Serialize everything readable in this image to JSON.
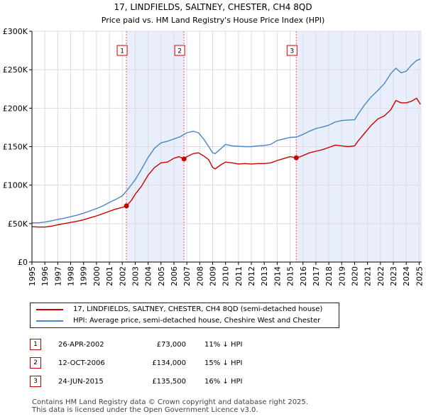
{
  "chart_data": {
    "type": "line",
    "title": "17, LINDFIELDS, SALTNEY, CHESTER, CH4 8QD",
    "subtitle": "Price paid vs. HM Land Registry's House Price Index (HPI)",
    "xlabel": "",
    "ylabel": "",
    "xlim": [
      1995,
      2025.2
    ],
    "ylim": [
      0,
      300000
    ],
    "y_ticks": [
      0,
      50000,
      100000,
      150000,
      200000,
      250000,
      300000
    ],
    "y_tick_labels": [
      "£0",
      "£50K",
      "£100K",
      "£150K",
      "£200K",
      "£250K",
      "£300K"
    ],
    "x_ticks": [
      1995,
      1996,
      1997,
      1998,
      1999,
      2000,
      2001,
      2002,
      2003,
      2004,
      2005,
      2006,
      2007,
      2008,
      2009,
      2010,
      2011,
      2012,
      2013,
      2014,
      2015,
      2016,
      2017,
      2018,
      2019,
      2020,
      2021,
      2022,
      2023,
      2024,
      2025
    ],
    "grid": true,
    "series": [
      {
        "name": "17, LINDFIELDS, SALTNEY, CHESTER, CH4 8QD (semi-detached house)",
        "color": "#cc0000",
        "x": [
          1995,
          1995.5,
          1996,
          1996.5,
          1997,
          1997.5,
          1998,
          1998.5,
          1999,
          1999.5,
          2000,
          2000.5,
          2001,
          2001.5,
          2002,
          2002.32,
          2002.7,
          2003,
          2003.5,
          2004,
          2004.5,
          2005,
          2005.5,
          2006,
          2006.4,
          2006.78,
          2007,
          2007.5,
          2007.9,
          2008.3,
          2008.7,
          2009,
          2009.2,
          2009.6,
          2010,
          2010.5,
          2011,
          2011.5,
          2012,
          2012.5,
          2013,
          2013.5,
          2014,
          2014.5,
          2015,
          2015.48,
          2015.8,
          2016.5,
          2017,
          2017.5,
          2018,
          2018.5,
          2019,
          2019.5,
          2020,
          2020.3,
          2020.8,
          2021.3,
          2021.8,
          2022.3,
          2022.8,
          2023.2,
          2023.6,
          2024,
          2024.4,
          2024.8,
          2025.1
        ],
        "values": [
          46000,
          45500,
          45500,
          46500,
          48500,
          50000,
          51500,
          53000,
          55000,
          57500,
          60000,
          63000,
          66000,
          69000,
          71000,
          73000,
          80000,
          88000,
          99000,
          113000,
          123000,
          129000,
          130000,
          135000,
          137000,
          134000,
          137000,
          141000,
          142000,
          138000,
          133000,
          123000,
          121000,
          126000,
          130000,
          129000,
          127500,
          128000,
          127500,
          128000,
          128000,
          129000,
          132000,
          134500,
          137000,
          135500,
          137000,
          142000,
          144000,
          146000,
          149000,
          152000,
          151000,
          150000,
          151000,
          158000,
          168000,
          178000,
          186000,
          190000,
          198000,
          210000,
          207000,
          207000,
          209000,
          213000,
          205000
        ]
      },
      {
        "name": "HPI: Average price, semi-detached house, Cheshire West and Chester",
        "color": "#4a86c8",
        "x": [
          1995,
          1995.5,
          1996,
          1996.5,
          1997,
          1997.5,
          1998,
          1998.5,
          1999,
          1999.5,
          2000,
          2000.5,
          2001,
          2001.5,
          2002,
          2002.5,
          2003,
          2003.5,
          2004,
          2004.5,
          2005,
          2005.5,
          2006,
          2006.5,
          2007,
          2007.5,
          2007.9,
          2008.3,
          2008.7,
          2009,
          2009.2,
          2009.6,
          2010,
          2010.5,
          2011,
          2011.5,
          2012,
          2012.5,
          2013,
          2013.5,
          2014,
          2014.5,
          2015,
          2015.5,
          2016,
          2016.5,
          2017,
          2017.5,
          2018,
          2018.5,
          2019,
          2019.5,
          2020,
          2020.3,
          2020.8,
          2021.3,
          2021.8,
          2022.3,
          2022.8,
          2023.2,
          2023.6,
          2024,
          2024.4,
          2024.8,
          2025.1
        ],
        "values": [
          51000,
          51000,
          52000,
          53500,
          55500,
          57000,
          59000,
          61000,
          63500,
          66500,
          69500,
          73000,
          77500,
          81500,
          86000,
          96000,
          107000,
          121000,
          136000,
          148000,
          155000,
          157000,
          160000,
          163000,
          168000,
          170000,
          168000,
          160000,
          150000,
          142000,
          141000,
          147000,
          153000,
          151000,
          150500,
          150000,
          150000,
          151000,
          151500,
          153000,
          158000,
          160000,
          162000,
          162500,
          166000,
          170000,
          173500,
          175500,
          178000,
          182000,
          184000,
          184500,
          185000,
          193000,
          205000,
          215000,
          223000,
          232000,
          245000,
          252000,
          246000,
          248000,
          256000,
          262000,
          264000
        ]
      }
    ],
    "sales": [
      {
        "label": "1",
        "x": 2002.32,
        "value": 73000
      },
      {
        "label": "2",
        "x": 2006.78,
        "value": 134000
      },
      {
        "label": "3",
        "x": 2015.48,
        "value": 135500
      }
    ]
  },
  "legend": {
    "property": "17, LINDFIELDS, SALTNEY, CHESTER, CH4 8QD (semi-detached house)",
    "hpi": "HPI: Average price, semi-detached house, Cheshire West and Chester"
  },
  "transactions": [
    {
      "num": "1",
      "date": "26-APR-2002",
      "price": "£73,000",
      "diff": "11% ↓ HPI"
    },
    {
      "num": "2",
      "date": "12-OCT-2006",
      "price": "£134,000",
      "diff": "15% ↓ HPI"
    },
    {
      "num": "3",
      "date": "24-JUN-2015",
      "price": "£135,500",
      "diff": "16% ↓ HPI"
    }
  ],
  "footer": {
    "line1": "Contains HM Land Registry data © Crown copyright and database right 2025.",
    "line2": "This data is licensed under the Open Government Licence v3.0."
  },
  "colors": {
    "property": "#cc0000",
    "hpi": "#4a86c8",
    "band": "#e8eefb",
    "vline": "#e06060"
  }
}
